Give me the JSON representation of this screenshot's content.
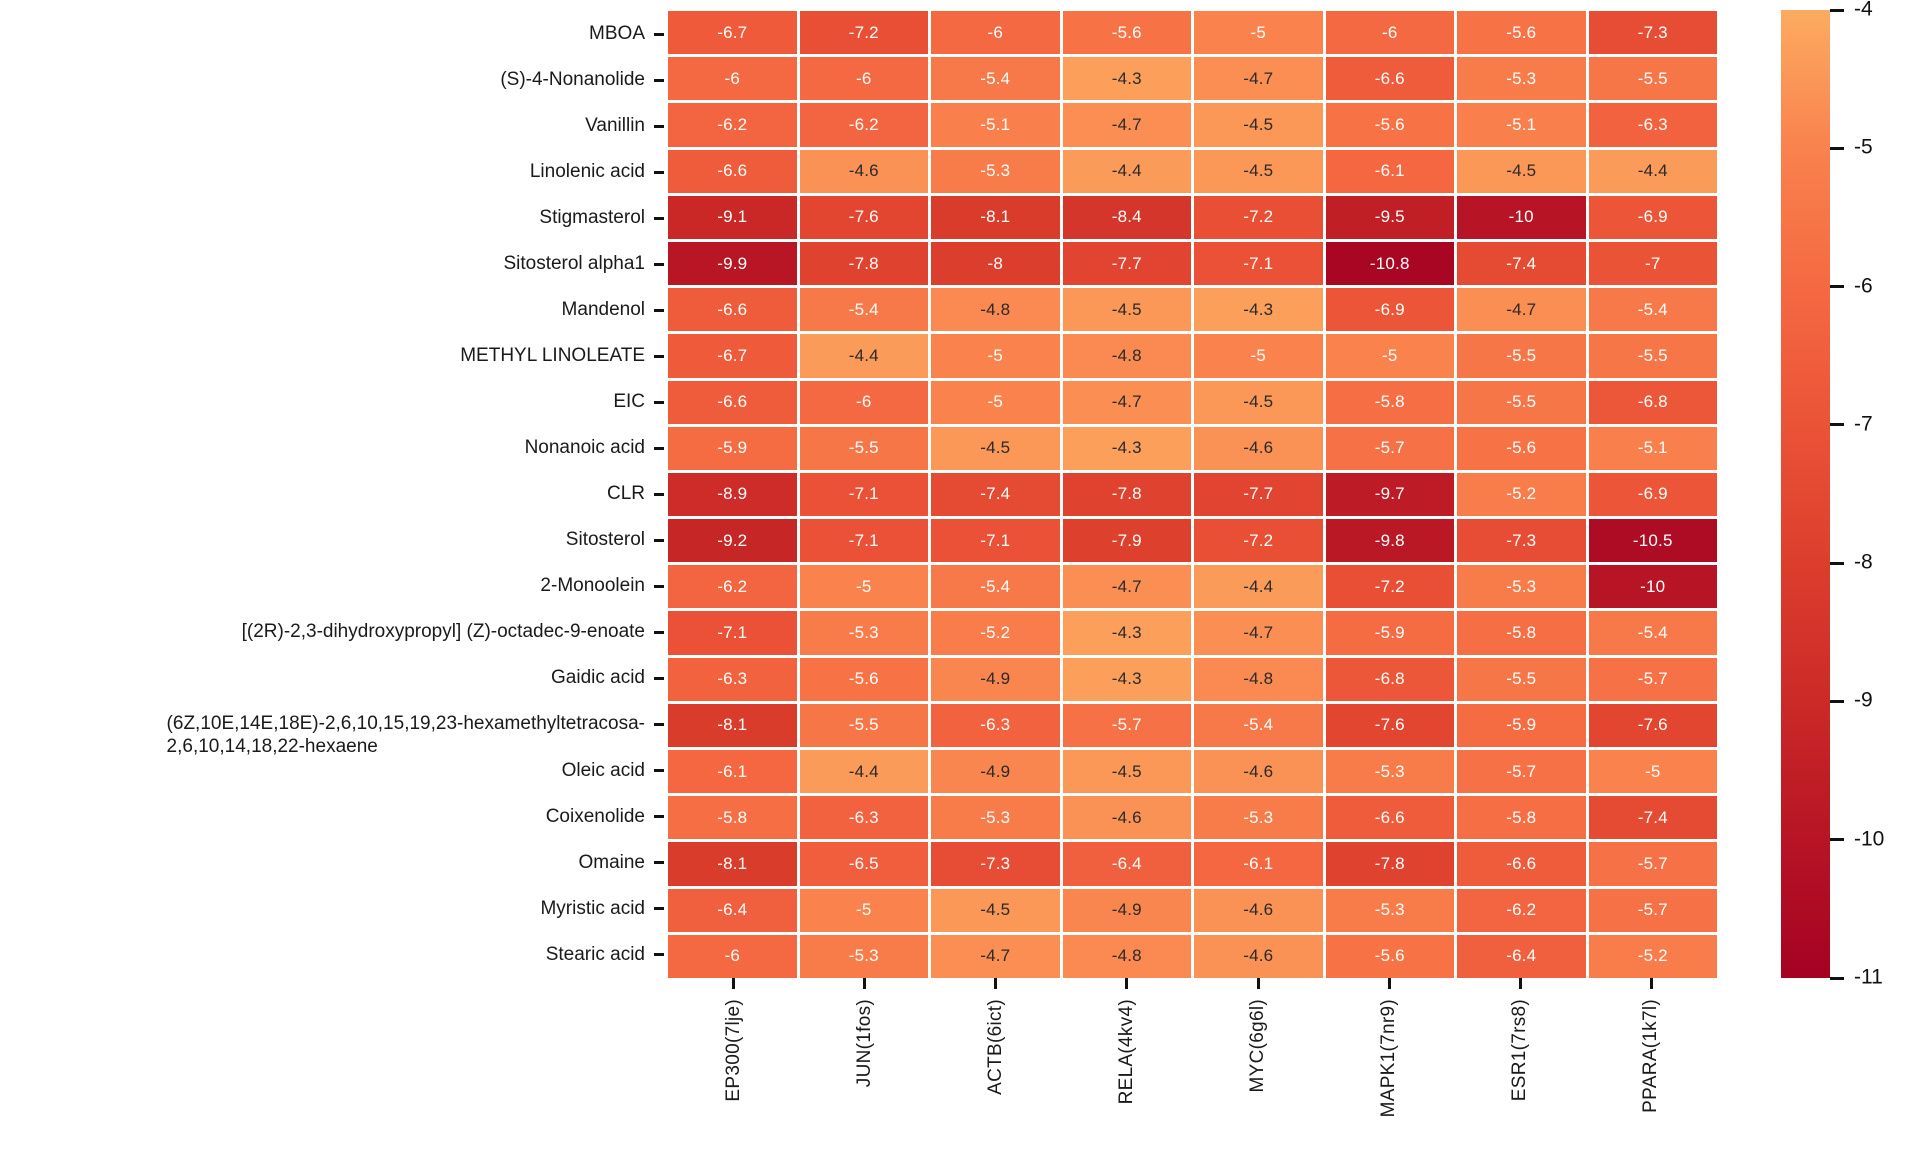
{
  "chart_data": {
    "type": "heatmap",
    "title": "",
    "xlabel": "",
    "ylabel": "",
    "legend_position": "right-colorbar",
    "grid": false,
    "rows": [
      "MBOA",
      "(S)-4-Nonanolide",
      "Vanillin",
      "Linolenic acid",
      "Stigmasterol",
      "Sitosterol alpha1",
      "Mandenol",
      "METHYL LINOLEATE",
      "EIC",
      "Nonanoic acid",
      "CLR",
      "Sitosterol",
      "2-Monoolein",
      "[(2R)-2,3-dihydroxypropyl] (Z)-octadec-9-enoate",
      "Gaidic acid",
      "(6Z,10E,14E,18E)-2,6,10,15,19,23-hexamethyltetracosa-\n2,6,10,14,18,22-hexaene",
      "Oleic acid",
      "Coixenolide",
      "Omaine",
      "Myristic acid",
      "Stearic acid"
    ],
    "columns": [
      "EP300(7lje)",
      "JUN(1fos)",
      "ACTB(6ict)",
      "RELA(4kv4)",
      "MYC(6g6l)",
      "MAPK1(7nr9)",
      "ESR1(7rs8)",
      "PPARA(1k7l)"
    ],
    "values": [
      [
        -6.7,
        -7.2,
        -6,
        -5.6,
        -5,
        -6,
        -5.6,
        -7.3
      ],
      [
        -6,
        -6,
        -5.4,
        -4.3,
        -4.7,
        -6.6,
        -5.3,
        -5.5
      ],
      [
        -6.2,
        -6.2,
        -5.1,
        -4.7,
        -4.5,
        -5.6,
        -5.1,
        -6.3
      ],
      [
        -6.6,
        -4.6,
        -5.3,
        -4.4,
        -4.5,
        -6.1,
        -4.5,
        -4.4
      ],
      [
        -9.1,
        -7.6,
        -8.1,
        -8.4,
        -7.2,
        -9.5,
        -10,
        -6.9
      ],
      [
        -9.9,
        -7.8,
        -8,
        -7.7,
        -7.1,
        -10.8,
        -7.4,
        -7
      ],
      [
        -6.6,
        -5.4,
        -4.8,
        -4.5,
        -4.3,
        -6.9,
        -4.7,
        -5.4
      ],
      [
        -6.7,
        -4.4,
        -5,
        -4.8,
        -5,
        -5,
        -5.5,
        -5.5
      ],
      [
        -6.6,
        -6,
        -5,
        -4.7,
        -4.5,
        -5.8,
        -5.5,
        -6.8
      ],
      [
        -5.9,
        -5.5,
        -4.5,
        -4.3,
        -4.6,
        -5.7,
        -5.6,
        -5.1
      ],
      [
        -8.9,
        -7.1,
        -7.4,
        -7.8,
        -7.7,
        -9.7,
        -5.2,
        -6.9
      ],
      [
        -9.2,
        -7.1,
        -7.1,
        -7.9,
        -7.2,
        -9.8,
        -7.3,
        -10.5
      ],
      [
        -6.2,
        -5,
        -5.4,
        -4.7,
        -4.4,
        -7.2,
        -5.3,
        -10
      ],
      [
        -7.1,
        -5.3,
        -5.2,
        -4.3,
        -4.7,
        -5.9,
        -5.8,
        -5.4
      ],
      [
        -6.3,
        -5.6,
        -4.9,
        -4.3,
        -4.8,
        -6.8,
        -5.5,
        -5.7
      ],
      [
        -8.1,
        -5.5,
        -6.3,
        -5.7,
        -5.4,
        -7.6,
        -5.9,
        -7.6
      ],
      [
        -6.1,
        -4.4,
        -4.9,
        -4.5,
        -4.6,
        -5.3,
        -5.7,
        -5
      ],
      [
        -5.8,
        -6.3,
        -5.3,
        -4.6,
        -5.3,
        -6.6,
        -5.8,
        -7.4
      ],
      [
        -8.1,
        -6.5,
        -7.3,
        -6.4,
        -6.1,
        -7.8,
        -6.6,
        -5.7
      ],
      [
        -6.4,
        -5,
        -4.5,
        -4.9,
        -4.6,
        -5.3,
        -6.2,
        -5.7
      ],
      [
        -6,
        -5.3,
        -4.7,
        -4.8,
        -4.6,
        -5.6,
        -6.4,
        -5.2
      ]
    ],
    "colorbar": {
      "min": -11,
      "max": -4,
      "tick_labels": [
        "-4",
        "-5",
        "-6",
        "-7",
        "-8",
        "-9",
        "-10",
        "-11"
      ],
      "tick_values": [
        -4,
        -5,
        -6,
        -7,
        -8,
        -9,
        -10,
        -11
      ]
    },
    "colors": {
      "scale_stops": [
        {
          "v": -4,
          "hex": "#FCAB61"
        },
        {
          "v": -5,
          "hex": "#F9824D"
        },
        {
          "v": -6,
          "hex": "#F56942"
        },
        {
          "v": -7,
          "hex": "#EB5337"
        },
        {
          "v": -8,
          "hex": "#DC3E2D"
        },
        {
          "v": -9,
          "hex": "#CB2A27"
        },
        {
          "v": -10,
          "hex": "#B71425"
        },
        {
          "v": -11,
          "hex": "#A50224"
        }
      ],
      "annot_light": "#FFFFFF",
      "annot_dark": "#2A2A2A",
      "annot_light_threshold": -5,
      "cell_gap": "#FFFFFF",
      "axis": "#111111"
    }
  }
}
